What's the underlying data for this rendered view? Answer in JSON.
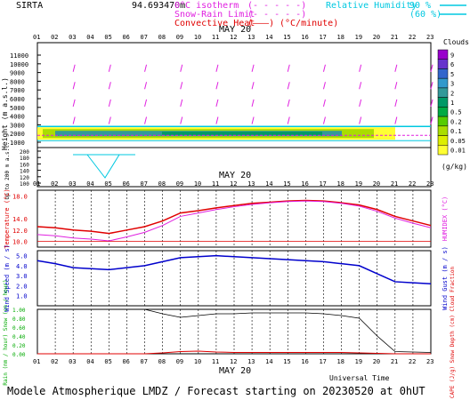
{
  "header": {
    "station": "SIRTA",
    "coords": "94.693470m",
    "legend_left": [
      {
        "label": "0°C isotherm",
        "sample": "(- - - - -)",
        "color": "#e020e0"
      },
      {
        "label": "Snow-Rain Limit",
        "sample": "(- - - - -)",
        "color": "#e020e0"
      },
      {
        "label": "Convective Heat",
        "sample": "(———)",
        "color": "#e00000",
        "unit": "(°C/minute)"
      }
    ],
    "legend_right": {
      "label": "Relative Humidity",
      "v1": "90 %",
      "v2": "(60 %)",
      "color": "#00c8e0"
    }
  },
  "hours": [
    "01",
    "02",
    "03",
    "04",
    "05",
    "06",
    "07",
    "08",
    "09",
    "10",
    "11",
    "12",
    "13",
    "14",
    "15",
    "16",
    "17",
    "18",
    "19",
    "20",
    "21",
    "22",
    "23"
  ],
  "date_label": "MAY 20",
  "panel1": {
    "ylabel": "Height (m a.s.l.)",
    "ylabel2": "Up to 200 m a.s.l.",
    "upper_ticks": [
      11000,
      10000,
      9000,
      8000,
      7000,
      6000,
      5000,
      4000,
      3000,
      2000,
      1000
    ],
    "lower_ticks": [
      200,
      180,
      160,
      140,
      120,
      100
    ],
    "cloud_legend": {
      "title": "Clouds",
      "unit": "(g/kg)",
      "levels": [
        "9",
        "6",
        "5",
        "3",
        "2",
        "1",
        "0.5",
        "0.2",
        "0.1",
        "0.05",
        "0.01"
      ],
      "colors": [
        "#9900cc",
        "#6633cc",
        "#3366cc",
        "#3399cc",
        "#339999",
        "#009966",
        "#00aa44",
        "#55cc00",
        "#aadd00",
        "#ddee00",
        "#ffff33"
      ]
    }
  },
  "panel2": {
    "ylabel_left": "Temperature (°C)",
    "ylabel_right": "HUMIDEX (°C)",
    "yticks": [
      "18.0",
      "14.0",
      "12.0",
      "10.0"
    ],
    "temperature_color": "#e00000",
    "humidex_color": "#e020e0"
  },
  "panel3": {
    "ylabel_left": "Wind Speed (m / s)",
    "ylabel_right": "Wind Gust (m / s)",
    "yticks": [
      "5.0",
      "4.0",
      "3.0",
      "2.0",
      "1.0"
    ],
    "color": "#0000cc"
  },
  "panel4": {
    "ylabel_left": "Rain (mm / hour) Snow (cm / hour)",
    "ylabel_right": "CAPE (J/g) Snow Depth (cm) Cloud Fraction",
    "yticks": [
      "1.00",
      "0.80",
      "0.60",
      "0.40",
      "0.20",
      "0.00"
    ],
    "xlabel": "Universal Time"
  },
  "footer": "Modele Atmospherique LMDZ / Forecast starting on 20230520 at 0hUT",
  "chart_data": [
    {
      "type": "line",
      "title": "Temperature / HUMIDEX",
      "x": [
        "01",
        "02",
        "03",
        "04",
        "05",
        "06",
        "07",
        "08",
        "09",
        "10",
        "11",
        "12",
        "13",
        "14",
        "15",
        "16",
        "17",
        "18",
        "19",
        "20",
        "21",
        "22",
        "23"
      ],
      "ylim": [
        9,
        19
      ],
      "series": [
        {
          "name": "Temperature",
          "values": [
            12.6,
            12.4,
            12.0,
            11.8,
            11.4,
            12.0,
            12.6,
            13.6,
            15.0,
            15.4,
            15.9,
            16.3,
            16.7,
            16.9,
            17.1,
            17.2,
            17.1,
            16.8,
            16.4,
            15.6,
            14.4,
            13.6,
            12.8
          ]
        },
        {
          "name": "HUMIDEX",
          "values": [
            11.2,
            11.0,
            10.6,
            10.4,
            10.1,
            10.8,
            11.6,
            12.8,
            14.4,
            15.0,
            15.6,
            16.1,
            16.5,
            16.8,
            17.0,
            17.1,
            17.0,
            16.7,
            16.2,
            15.3,
            14.1,
            13.2,
            12.4
          ]
        }
      ]
    },
    {
      "type": "line",
      "title": "Wind Speed / Wind Gust",
      "x": [
        "01",
        "02",
        "03",
        "04",
        "05",
        "06",
        "07",
        "08",
        "09",
        "10",
        "11",
        "12",
        "13",
        "14",
        "15",
        "16",
        "17",
        "18",
        "19",
        "20",
        "21",
        "22",
        "23"
      ],
      "ylim": [
        0,
        5.5
      ],
      "series": [
        {
          "name": "Wind Speed",
          "values": [
            4.5,
            4.2,
            3.8,
            3.7,
            3.6,
            3.8,
            4.0,
            4.4,
            4.8,
            4.9,
            5.0,
            4.9,
            4.8,
            4.7,
            4.6,
            4.5,
            4.4,
            4.2,
            4.0,
            3.2,
            2.4,
            2.3,
            2.2
          ]
        }
      ]
    },
    {
      "type": "line",
      "title": "Rain / Cloud Fraction",
      "x": [
        "01",
        "02",
        "03",
        "04",
        "05",
        "06",
        "07",
        "08",
        "09",
        "10",
        "11",
        "12",
        "13",
        "14",
        "15",
        "16",
        "17",
        "18",
        "19",
        "20",
        "21",
        "22",
        "23"
      ],
      "ylim": [
        0,
        1
      ],
      "series": [
        {
          "name": "Cloud Fraction",
          "values": [
            1.0,
            1.0,
            1.0,
            1.0,
            1.0,
            1.0,
            1.0,
            0.9,
            0.82,
            0.86,
            0.9,
            0.9,
            0.92,
            0.92,
            0.92,
            0.92,
            0.9,
            0.86,
            0.8,
            0.4,
            0.05,
            0.04,
            0.03
          ]
        },
        {
          "name": "Rain",
          "values": [
            0.0,
            0.0,
            0.0,
            0.0,
            0.0,
            0.0,
            0.0,
            0.02,
            0.05,
            0.06,
            0.04,
            0.03,
            0.03,
            0.03,
            0.03,
            0.03,
            0.03,
            0.03,
            0.02,
            0.01,
            0.0,
            0.0,
            0.0
          ]
        }
      ]
    }
  ]
}
